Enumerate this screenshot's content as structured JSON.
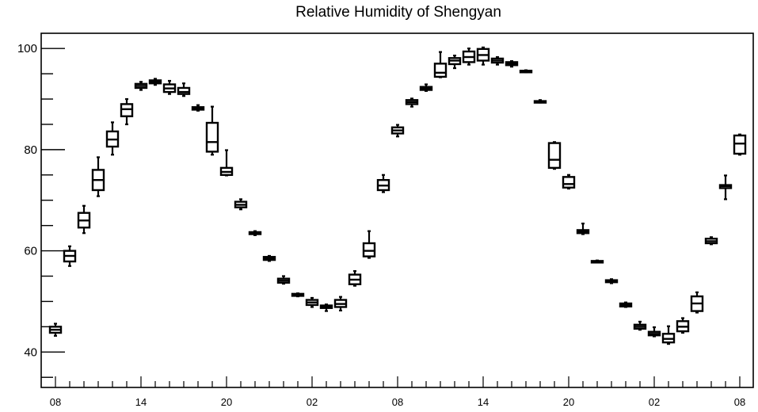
{
  "chart_data": {
    "type": "box",
    "title": "Relative Humidity of Shengyan",
    "xlabel": "",
    "ylabel": "",
    "ylim": [
      33,
      103
    ],
    "y_ticks": [
      40,
      60,
      80,
      100
    ],
    "x_tick_labels": [
      "08",
      "14",
      "20",
      "02",
      "08",
      "14",
      "20",
      "02",
      "08"
    ],
    "grid": false,
    "boxes": [
      {
        "hour": 8,
        "whisker_low": 43.2,
        "q1": 43.8,
        "median": 44.4,
        "q3": 45.0,
        "whisker_high": 45.6
      },
      {
        "hour": 9,
        "whisker_low": 57.0,
        "q1": 57.9,
        "median": 59.0,
        "q3": 60.0,
        "whisker_high": 60.9
      },
      {
        "hour": 10,
        "whisker_low": 63.5,
        "q1": 64.6,
        "median": 66.0,
        "q3": 67.5,
        "whisker_high": 68.9
      },
      {
        "hour": 11,
        "whisker_low": 70.8,
        "q1": 72.0,
        "median": 74.0,
        "q3": 76.0,
        "whisker_high": 78.5
      },
      {
        "hour": 12,
        "whisker_low": 79.0,
        "q1": 80.6,
        "median": 82.0,
        "q3": 83.6,
        "whisker_high": 85.4
      },
      {
        "hour": 13,
        "whisker_low": 85.0,
        "q1": 86.6,
        "median": 88.0,
        "q3": 89.0,
        "whisker_high": 90.0
      },
      {
        "hour": 14,
        "whisker_low": 91.8,
        "q1": 92.2,
        "median": 92.6,
        "q3": 93.0,
        "whisker_high": 93.4
      },
      {
        "hour": 15,
        "whisker_low": 92.8,
        "q1": 93.1,
        "median": 93.4,
        "q3": 93.7,
        "whisker_high": 94.0
      },
      {
        "hour": 16,
        "whisker_low": 91.0,
        "q1": 91.4,
        "median": 92.1,
        "q3": 92.9,
        "whisker_high": 93.6
      },
      {
        "hour": 17,
        "whisker_low": 90.6,
        "q1": 91.0,
        "median": 91.4,
        "q3": 92.2,
        "whisker_high": 93.1
      },
      {
        "hour": 18,
        "whisker_low": 87.7,
        "q1": 87.9,
        "median": 88.1,
        "q3": 88.4,
        "whisker_high": 88.8
      },
      {
        "hour": 19,
        "whisker_low": 79.0,
        "q1": 79.6,
        "median": 81.5,
        "q3": 85.3,
        "whisker_high": 88.5
      },
      {
        "hour": 20,
        "whisker_low": 74.9,
        "q1": 75.0,
        "median": 75.6,
        "q3": 76.4,
        "whisker_high": 79.9
      },
      {
        "hour": 21,
        "whisker_low": 68.2,
        "q1": 68.6,
        "median": 69.1,
        "q3": 69.7,
        "whisker_high": 70.2
      },
      {
        "hour": 22,
        "whisker_low": 63.1,
        "q1": 63.3,
        "median": 63.5,
        "q3": 63.7,
        "whisker_high": 63.9
      },
      {
        "hour": 23,
        "whisker_low": 58.0,
        "q1": 58.2,
        "median": 58.5,
        "q3": 58.8,
        "whisker_high": 59.0
      },
      {
        "hour": 0,
        "whisker_low": 53.5,
        "q1": 53.7,
        "median": 54.1,
        "q3": 54.5,
        "whisker_high": 55.0
      },
      {
        "hour": 1,
        "whisker_low": 51.0,
        "q1": 51.1,
        "median": 51.3,
        "q3": 51.5,
        "whisker_high": 51.6
      },
      {
        "hour": 2,
        "whisker_low": 48.9,
        "q1": 49.3,
        "median": 49.8,
        "q3": 50.3,
        "whisker_high": 50.7
      },
      {
        "hour": 3,
        "whisker_low": 48.1,
        "q1": 48.7,
        "median": 49.0,
        "q3": 49.2,
        "whisker_high": 49.4
      },
      {
        "hour": 4,
        "whisker_low": 48.2,
        "q1": 48.9,
        "median": 49.5,
        "q3": 50.3,
        "whisker_high": 50.9
      },
      {
        "hour": 5,
        "whisker_low": 53.1,
        "q1": 53.4,
        "median": 54.3,
        "q3": 55.3,
        "whisker_high": 56.0
      },
      {
        "hour": 6,
        "whisker_low": 58.6,
        "q1": 58.9,
        "median": 60.0,
        "q3": 61.5,
        "whisker_high": 63.9
      },
      {
        "hour": 7,
        "whisker_low": 71.6,
        "q1": 72.0,
        "median": 72.9,
        "q3": 74.0,
        "whisker_high": 75.0
      },
      {
        "hour": 8,
        "whisker_low": 82.6,
        "q1": 83.2,
        "median": 83.8,
        "q3": 84.4,
        "whisker_high": 84.9
      },
      {
        "hour": 9,
        "whisker_low": 88.5,
        "q1": 89.0,
        "median": 89.4,
        "q3": 89.8,
        "whisker_high": 90.1
      },
      {
        "hour": 10,
        "whisker_low": 91.6,
        "q1": 91.8,
        "median": 92.1,
        "q3": 92.4,
        "whisker_high": 92.9
      },
      {
        "hour": 11,
        "whisker_low": 94.3,
        "q1": 94.4,
        "median": 95.2,
        "q3": 97.0,
        "whisker_high": 99.3
      },
      {
        "hour": 12,
        "whisker_low": 96.1,
        "q1": 96.9,
        "median": 97.6,
        "q3": 98.1,
        "whisker_high": 98.6
      },
      {
        "hour": 13,
        "whisker_low": 96.8,
        "q1": 97.3,
        "median": 98.3,
        "q3": 99.4,
        "whisker_high": 100.0
      },
      {
        "hour": 14,
        "whisker_low": 96.8,
        "q1": 97.6,
        "median": 98.7,
        "q3": 99.9,
        "whisker_high": 100.2
      },
      {
        "hour": 15,
        "whisker_low": 96.8,
        "q1": 97.2,
        "median": 97.6,
        "q3": 98.0,
        "whisker_high": 98.3
      },
      {
        "hour": 16,
        "whisker_low": 96.4,
        "q1": 96.7,
        "median": 97.0,
        "q3": 97.3,
        "whisker_high": 97.5
      },
      {
        "hour": 17,
        "whisker_low": 95.3,
        "q1": 95.4,
        "median": 95.5,
        "q3": 95.6,
        "whisker_high": 95.7
      },
      {
        "hour": 18,
        "whisker_low": 89.3,
        "q1": 89.4,
        "median": 89.5,
        "q3": 89.6,
        "whisker_high": 89.8
      },
      {
        "hour": 19,
        "whisker_low": 76.2,
        "q1": 76.4,
        "median": 78.0,
        "q3": 81.3,
        "whisker_high": 81.5
      },
      {
        "hour": 20,
        "whisker_low": 72.3,
        "q1": 72.5,
        "median": 73.2,
        "q3": 74.6,
        "whisker_high": 75.0
      },
      {
        "hour": 21,
        "whisker_low": 63.3,
        "q1": 63.5,
        "median": 63.8,
        "q3": 64.1,
        "whisker_high": 65.4
      },
      {
        "hour": 22,
        "whisker_low": 57.7,
        "q1": 57.8,
        "median": 57.9,
        "q3": 58.0,
        "whisker_high": 58.1
      },
      {
        "hour": 23,
        "whisker_low": 53.6,
        "q1": 53.8,
        "median": 54.0,
        "q3": 54.2,
        "whisker_high": 54.4
      },
      {
        "hour": 0,
        "whisker_low": 48.9,
        "q1": 49.0,
        "median": 49.3,
        "q3": 49.6,
        "whisker_high": 49.8
      },
      {
        "hour": 1,
        "whisker_low": 44.4,
        "q1": 44.6,
        "median": 45.0,
        "q3": 45.4,
        "whisker_high": 46.0
      },
      {
        "hour": 2,
        "whisker_low": 43.1,
        "q1": 43.3,
        "median": 43.6,
        "q3": 44.0,
        "whisker_high": 44.9
      },
      {
        "hour": 3,
        "whisker_low": 41.6,
        "q1": 41.9,
        "median": 42.6,
        "q3": 43.6,
        "whisker_high": 45.1
      },
      {
        "hour": 4,
        "whisker_low": 43.8,
        "q1": 44.1,
        "median": 45.0,
        "q3": 46.1,
        "whisker_high": 46.7
      },
      {
        "hour": 5,
        "whisker_low": 47.8,
        "q1": 48.1,
        "median": 49.6,
        "q3": 51.0,
        "whisker_high": 51.8
      },
      {
        "hour": 6,
        "whisker_low": 61.3,
        "q1": 61.5,
        "median": 61.9,
        "q3": 62.4,
        "whisker_high": 62.7
      },
      {
        "hour": 7,
        "whisker_low": 70.2,
        "q1": 72.4,
        "median": 72.8,
        "q3": 73.0,
        "whisker_high": 74.9
      },
      {
        "hour": 8,
        "whisker_low": 79.0,
        "q1": 79.2,
        "median": 81.2,
        "q3": 82.8,
        "whisker_high": 83.0
      }
    ]
  }
}
